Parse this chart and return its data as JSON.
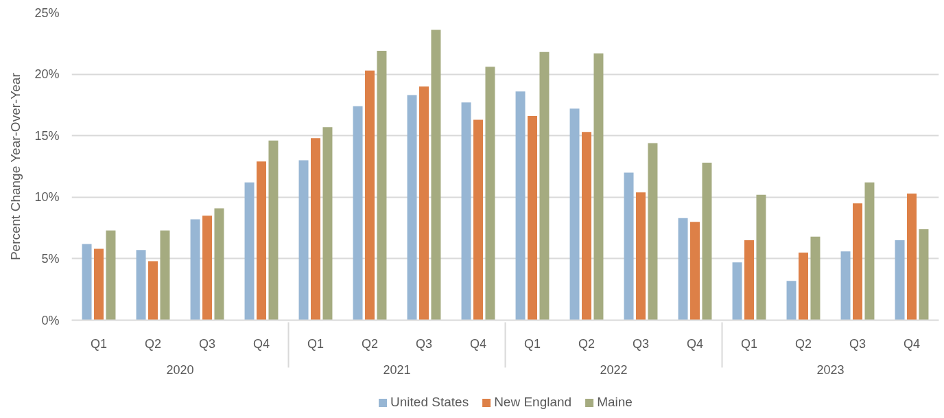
{
  "chart_data": {
    "type": "bar",
    "ylabel": "Percent Change Year-Over-Year",
    "categories": [
      "Q1",
      "Q2",
      "Q3",
      "Q4",
      "Q1",
      "Q2",
      "Q3",
      "Q4",
      "Q1",
      "Q2",
      "Q3",
      "Q4",
      "Q1",
      "Q2",
      "Q3",
      "Q4"
    ],
    "annotations": [
      "2020",
      "2021",
      "2022",
      "2023"
    ],
    "series": [
      {
        "name": "United States",
        "color": "#97b6d4",
        "values": [
          6.2,
          5.7,
          8.2,
          11.2,
          13.0,
          17.4,
          18.3,
          17.7,
          18.6,
          17.2,
          12.0,
          8.3,
          4.7,
          3.2,
          5.6,
          6.5
        ]
      },
      {
        "name": "New England",
        "color": "#dd8047",
        "values": [
          5.8,
          4.8,
          8.5,
          12.9,
          14.8,
          20.3,
          19.0,
          16.3,
          16.6,
          15.3,
          10.4,
          8.0,
          6.5,
          5.5,
          9.5,
          10.3
        ]
      },
      {
        "name": "Maine",
        "color": "#a5ab80",
        "values": [
          7.3,
          7.3,
          9.1,
          14.6,
          15.7,
          21.9,
          23.6,
          20.6,
          21.8,
          21.7,
          14.4,
          12.8,
          10.2,
          6.8,
          11.2,
          7.4
        ]
      }
    ],
    "ylim": [
      0,
      25
    ],
    "yticks": [
      {
        "value": 0,
        "label": "0%"
      },
      {
        "value": 5,
        "label": "5%"
      },
      {
        "value": 10,
        "label": "10%"
      },
      {
        "value": 15,
        "label": "15%"
      },
      {
        "value": 20,
        "label": "20%"
      },
      {
        "value": 25,
        "label": "25%"
      }
    ],
    "grid": "y",
    "legend": "bottom"
  }
}
